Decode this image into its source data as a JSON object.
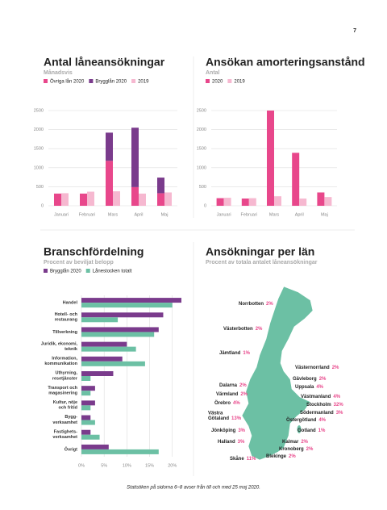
{
  "page_number": "7",
  "chart_data": [
    {
      "type": "bar",
      "title": "Antal låneansökningar",
      "subtitle": "Månadsvis",
      "categories": [
        "Januari",
        "Februari",
        "Mars",
        "April",
        "Maj"
      ],
      "series": [
        {
          "name": "Övriga lån 2020",
          "color": "#e8478b",
          "group": "2020",
          "values": [
            320,
            320,
            1180,
            490,
            330
          ]
        },
        {
          "name": "Brygglån 2020",
          "color": "#7a3b8c",
          "group": "2020",
          "values": [
            0,
            0,
            740,
            1560,
            410
          ]
        },
        {
          "name": "2019",
          "color": "#f6b8d0",
          "group": "2019",
          "values": [
            330,
            370,
            380,
            320,
            350
          ]
        }
      ],
      "ylim": [
        0,
        2500
      ],
      "yticks": [
        0,
        500,
        1000,
        1500,
        2000,
        2500
      ],
      "grid": true
    },
    {
      "type": "bar",
      "title": "Ansökan amorteringsanstånd",
      "subtitle": "Antal",
      "categories": [
        "Januari",
        "Februari",
        "Mars",
        "April",
        "Maj"
      ],
      "series": [
        {
          "name": "2020",
          "color": "#e8478b",
          "values": [
            200,
            190,
            2500,
            1390,
            350
          ]
        },
        {
          "name": "2019",
          "color": "#f6b8d0",
          "values": [
            210,
            200,
            250,
            190,
            230
          ]
        }
      ],
      "ylim": [
        0,
        2500
      ],
      "yticks": [
        0,
        500,
        1000,
        1500,
        2000,
        2500
      ],
      "grid": true
    },
    {
      "type": "hbar",
      "title": "Branschfördelning",
      "subtitle": "Procent av beviljat belopp",
      "categories": [
        "Handel",
        "Hotell- och\nrestaurang",
        "Tillverkning",
        "Juridik, ekonomi,\nteknik",
        "Information,\nkommunikation",
        "Uthyrning,\nresetjänster",
        "Transport och\nmagasinering",
        "Kultur, nöje\noch fritid",
        "Bygg-\nverksamhet",
        "Fastighets-\nverksamhet",
        "Övrigt"
      ],
      "series": [
        {
          "name": "Brygglån 2020",
          "color": "#7a3b8c",
          "values": [
            22,
            18,
            17,
            10,
            9,
            7,
            3,
            3,
            2,
            2,
            6
          ]
        },
        {
          "name": "Lånestocken totalt",
          "color": "#6cc0a4",
          "values": [
            20,
            8,
            16,
            12,
            14,
            2,
            2,
            2,
            3,
            4,
            17
          ]
        }
      ],
      "xlim": [
        0,
        22
      ],
      "xticks": [
        {
          "value": 0,
          "label": "0%"
        },
        {
          "value": 5,
          "label": "5%"
        },
        {
          "value": 10,
          "label": "10%"
        },
        {
          "value": 15,
          "label": "15%"
        },
        {
          "value": 20,
          "label": "20%"
        }
      ],
      "grid": true
    }
  ],
  "map": {
    "title": "Ansökningar per län",
    "subtitle": "Procent av totala antalet låneansökningar",
    "regions": [
      {
        "name": "Norrbotten",
        "value": "2%"
      },
      {
        "name": "Västerbotten",
        "value": "2%"
      },
      {
        "name": "Jämtland",
        "value": "1%"
      },
      {
        "name": "Västernorrland",
        "value": "2%"
      },
      {
        "name": "Gävleborg",
        "value": "2%"
      },
      {
        "name": "Uppsala",
        "value": "4%"
      },
      {
        "name": "Dalarna",
        "value": "2%"
      },
      {
        "name": "Värmland",
        "value": "2%"
      },
      {
        "name": "Västmanland",
        "value": "4%"
      },
      {
        "name": "Örebro",
        "value": "4%"
      },
      {
        "name": "Stockholm",
        "value": "32%"
      },
      {
        "name": "Västra\nGötaland",
        "value": "13%"
      },
      {
        "name": "Södermanland",
        "value": "3%"
      },
      {
        "name": "Östergötland",
        "value": "4%"
      },
      {
        "name": "Jönköping",
        "value": "3%"
      },
      {
        "name": "Gotland",
        "value": "1%"
      },
      {
        "name": "Halland",
        "value": "3%"
      },
      {
        "name": "Kalmar",
        "value": "2%"
      },
      {
        "name": "Kronoberg",
        "value": "2%"
      },
      {
        "name": "Blekinge",
        "value": "2%"
      },
      {
        "name": "Skåne",
        "value": "11%"
      }
    ]
  },
  "footnote": "Statistiken på sidorna 6–8 avser från till och med 25 maj 2020."
}
